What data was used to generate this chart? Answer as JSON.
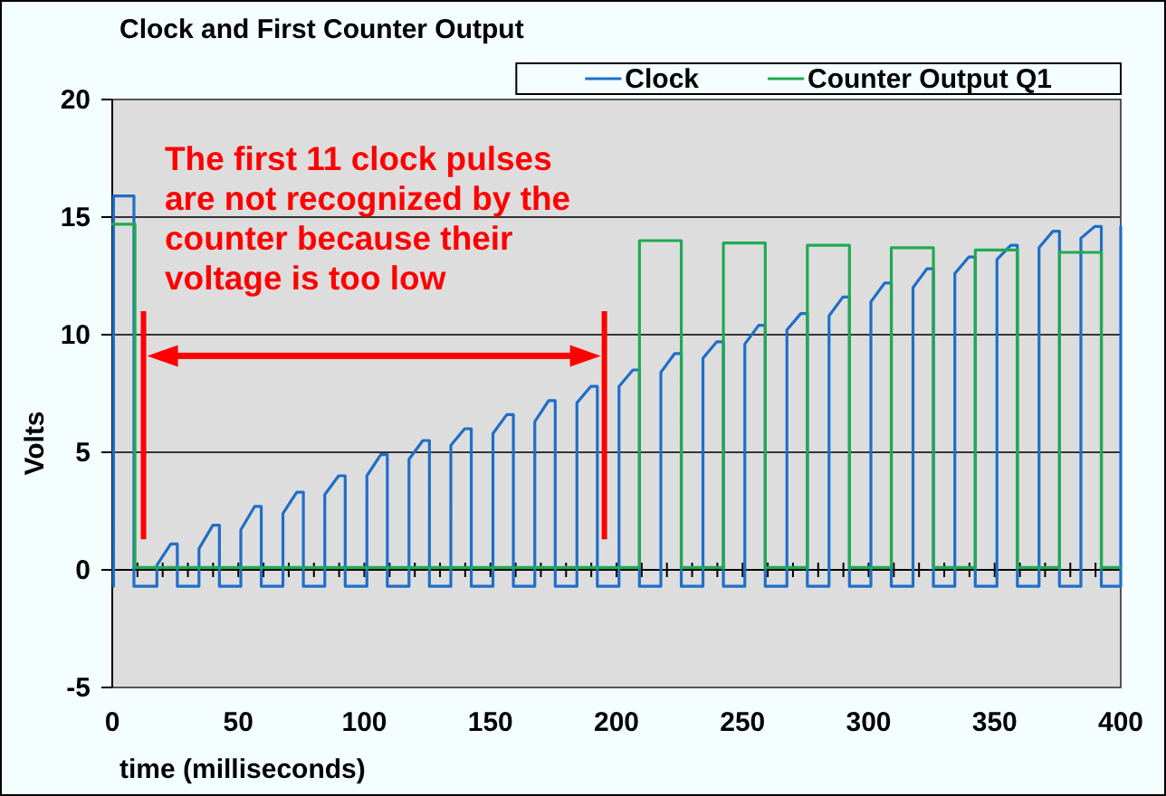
{
  "chart_data": {
    "type": "line",
    "title": "Clock and First Counter Output",
    "xlabel": "time (milliseconds)",
    "ylabel": "Volts",
    "annotations": [
      "The first 11 clock pulses are not recognized by the counter because their voltage is too low"
    ],
    "xlim": [
      0,
      400
    ],
    "ylim": [
      -5,
      20
    ],
    "xticks": [
      0,
      {
        "value": 10,
        "label": null
      },
      {
        "value": 20,
        "label": null
      },
      {
        "value": 30,
        "label": null
      },
      {
        "value": 40,
        "label": null
      },
      50,
      {
        "value": 60,
        "label": null
      },
      {
        "value": 70,
        "label": null
      },
      {
        "value": 80,
        "label": null
      },
      {
        "value": 90,
        "label": null
      },
      100,
      {
        "value": 110,
        "label": null
      },
      {
        "value": 120,
        "label": null
      },
      {
        "value": 130,
        "label": null
      },
      {
        "value": 140,
        "label": null
      },
      150,
      {
        "value": 160,
        "label": null
      },
      {
        "value": 170,
        "label": null
      },
      {
        "value": 180,
        "label": null
      },
      {
        "value": 190,
        "label": null
      },
      200,
      {
        "value": 210,
        "label": null
      },
      {
        "value": 220,
        "label": null
      },
      {
        "value": 230,
        "label": null
      },
      {
        "value": 240,
        "label": null
      },
      250,
      {
        "value": 260,
        "label": null
      },
      {
        "value": 270,
        "label": null
      },
      {
        "value": 280,
        "label": null
      },
      {
        "value": 290,
        "label": null
      },
      300,
      {
        "value": 310,
        "label": null
      },
      {
        "value": 320,
        "label": null
      },
      {
        "value": 330,
        "label": null
      },
      {
        "value": 340,
        "label": null
      },
      350,
      {
        "value": 360,
        "label": null
      },
      {
        "value": 370,
        "label": null
      },
      {
        "value": 380,
        "label": null
      },
      {
        "value": 390,
        "label": null
      },
      400
    ],
    "yticks": [
      -5,
      0,
      5,
      10,
      15,
      20
    ],
    "grid": "y",
    "legend": "top right",
    "series": [
      {
        "name": "Clock",
        "color": "#1f6ec8",
        "x": [
          0.5,
          0.5,
          8.6,
          8.6,
          17.7,
          17.7,
          23.2,
          25.8,
          25.8,
          34.4,
          34.4,
          39.9,
          42.5,
          42.5,
          51.0,
          51.0,
          56.5,
          59.1,
          59.1,
          67.7,
          67.7,
          73.2,
          75.8,
          75.8,
          84.3,
          84.3,
          89.8,
          92.4,
          92.4,
          101.0,
          101.0,
          106.5,
          109.1,
          109.1,
          117.7,
          117.7,
          123.2,
          125.8,
          125.8,
          134.3,
          134.3,
          139.8,
          142.4,
          142.4,
          151.0,
          151.0,
          156.5,
          159.1,
          159.1,
          167.6,
          167.6,
          173.1,
          175.7,
          175.7,
          184.3,
          184.3,
          189.8,
          192.4,
          192.4,
          201.0,
          201.0,
          206.5,
          209.1,
          209.1,
          217.6,
          217.6,
          223.1,
          225.7,
          225.7,
          234.3,
          234.3,
          239.8,
          242.4,
          242.4,
          250.9,
          250.9,
          256.4,
          259.0,
          259.0,
          267.6,
          267.6,
          273.1,
          275.7,
          275.7,
          284.3,
          284.3,
          289.8,
          292.4,
          292.4,
          300.9,
          300.9,
          306.4,
          309.0,
          309.0,
          317.6,
          317.6,
          323.1,
          325.7,
          325.7,
          334.2,
          334.2,
          339.7,
          342.3,
          342.3,
          350.9,
          350.9,
          356.4,
          359.0,
          359.0,
          367.6,
          367.6,
          373.1,
          375.7,
          375.7,
          384.2,
          384.2,
          389.7,
          392.3,
          392.3,
          400,
          400
        ],
        "values": [
          -0.7,
          15.9,
          15.9,
          -0.7,
          -0.7,
          0.2,
          1.1,
          1.1,
          -0.7,
          -0.7,
          0.9,
          1.9,
          1.9,
          -0.7,
          -0.7,
          1.7,
          2.7,
          2.7,
          -0.7,
          -0.7,
          2.4,
          3.3,
          3.3,
          -0.7,
          -0.7,
          3.2,
          4.0,
          4.0,
          -0.7,
          -0.7,
          4.0,
          4.9,
          4.9,
          -0.7,
          -0.7,
          4.7,
          5.5,
          5.5,
          -0.7,
          -0.7,
          5.3,
          6.0,
          6.0,
          -0.7,
          -0.7,
          5.8,
          6.6,
          6.6,
          -0.7,
          -0.7,
          6.3,
          7.2,
          7.2,
          -0.7,
          -0.7,
          7.1,
          7.8,
          7.8,
          -0.7,
          -0.7,
          7.8,
          8.5,
          8.5,
          -0.7,
          -0.7,
          8.4,
          9.2,
          9.2,
          -0.7,
          -0.7,
          9.0,
          9.7,
          9.7,
          -0.7,
          -0.7,
          9.6,
          10.4,
          10.4,
          -0.7,
          -0.7,
          10.2,
          10.9,
          10.9,
          -0.7,
          -0.7,
          10.8,
          11.6,
          11.6,
          -0.7,
          -0.7,
          11.4,
          12.2,
          12.2,
          -0.7,
          -0.7,
          12.0,
          12.8,
          12.8,
          -0.7,
          -0.7,
          12.6,
          13.3,
          13.3,
          -0.7,
          -0.7,
          13.2,
          13.8,
          13.8,
          -0.7,
          -0.7,
          13.7,
          14.4,
          14.4,
          -0.7,
          -0.7,
          14.1,
          14.6,
          14.6,
          -0.7,
          -0.7,
          14.6
        ]
      },
      {
        "name": "Counter Output Q1",
        "color": "#20aa50",
        "x": [
          0,
          9.0,
          9.0,
          209.1,
          209.1,
          225.7,
          225.7,
          242.4,
          242.4,
          259.0,
          259.0,
          275.7,
          275.7,
          292.4,
          292.4,
          309.0,
          309.0,
          325.7,
          325.7,
          342.3,
          342.3,
          359.0,
          359.0,
          375.7,
          375.7,
          392.3,
          392.3,
          400
        ],
        "values": [
          14.7,
          14.7,
          0.1,
          0.1,
          14.0,
          14.0,
          0.1,
          0.1,
          13.9,
          13.9,
          0.1,
          0.1,
          13.8,
          13.8,
          0.1,
          0.1,
          13.7,
          13.7,
          0.1,
          0.1,
          13.6,
          13.6,
          0.1,
          0.1,
          13.5,
          13.5,
          0.1,
          0.1
        ]
      }
    ]
  }
}
